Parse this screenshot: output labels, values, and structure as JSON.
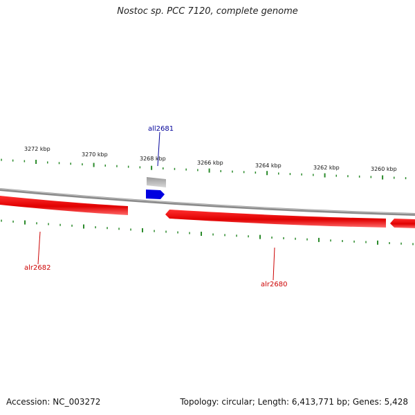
{
  "title": "Nostoc sp. PCC 7120, complete genome",
  "footer": {
    "accession": "Accession: NC_003272",
    "summary": "Topology: circular; Length: 6,413,771 bp; Genes: 5,428"
  },
  "colors": {
    "backbone": "#8a8a8a",
    "forward_gene": "#e00000",
    "reverse_gene": "#0000e0",
    "pseudo_gene": "#b4b4b4",
    "ticks": "#2a8a2a",
    "forward_label": "#cc0000",
    "reverse_label": "#000099"
  },
  "ticks": [
    {
      "label": "3272 kbp",
      "kbp": 3272
    },
    {
      "label": "3270 kbp",
      "kbp": 3270
    },
    {
      "label": "3268 kbp",
      "kbp": 3268
    },
    {
      "label": "3266 kbp",
      "kbp": 3266
    },
    {
      "label": "3264 kbp",
      "kbp": 3264
    },
    {
      "label": "3262 kbp",
      "kbp": 3262
    },
    {
      "label": "3260 kbp",
      "kbp": 3260
    }
  ],
  "genes": [
    {
      "name": "all2681",
      "strand": "-",
      "color": "#0000e0",
      "label_color": "#000099"
    },
    {
      "name": "alr2682",
      "strand": "+",
      "color": "#e00000",
      "label_color": "#cc0000"
    },
    {
      "name": "alr2680",
      "strand": "+",
      "color": "#e00000",
      "label_color": "#cc0000"
    }
  ]
}
